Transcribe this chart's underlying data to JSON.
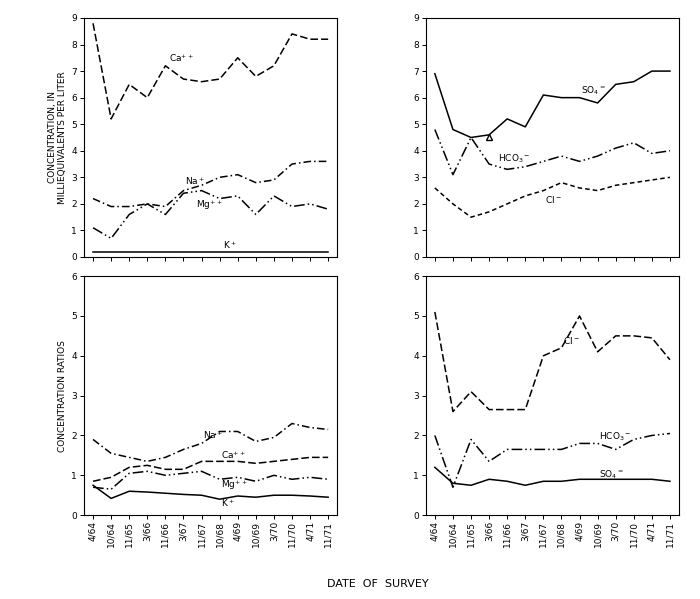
{
  "x_labels": [
    "4/64",
    "10/64",
    "11/65",
    "3/66",
    "11/66",
    "3/67",
    "11/67",
    "10/68",
    "4/69",
    "10/69",
    "3/70",
    "11/70",
    "4/71",
    "11/71"
  ],
  "tl_Ca": [
    8.8,
    5.2,
    6.5,
    6.0,
    7.2,
    6.7,
    6.6,
    6.7,
    7.5,
    6.8,
    7.2,
    8.4,
    8.2,
    8.2
  ],
  "tl_Na": [
    2.2,
    1.9,
    1.9,
    2.0,
    1.9,
    2.5,
    2.7,
    3.0,
    3.1,
    2.8,
    2.9,
    3.5,
    3.6,
    3.6
  ],
  "tl_Mg": [
    1.1,
    0.7,
    1.6,
    2.0,
    1.6,
    2.4,
    2.5,
    2.2,
    2.3,
    1.6,
    2.3,
    1.9,
    2.0,
    1.8
  ],
  "tl_K": [
    0.2,
    0.2,
    0.2,
    0.2,
    0.2,
    0.2,
    0.2,
    0.2,
    0.2,
    0.2,
    0.2,
    0.2,
    0.2,
    0.2
  ],
  "tr_SO4": [
    6.9,
    4.8,
    4.5,
    4.6,
    5.2,
    4.9,
    6.1,
    6.0,
    6.0,
    5.8,
    6.5,
    6.6,
    7.0,
    7.0
  ],
  "tr_HCO3": [
    4.8,
    3.1,
    4.5,
    3.5,
    3.3,
    3.4,
    3.6,
    3.8,
    3.6,
    3.8,
    4.1,
    4.3,
    3.9,
    4.0
  ],
  "tr_Cl": [
    2.6,
    2.0,
    1.5,
    1.7,
    2.0,
    2.3,
    2.5,
    2.8,
    2.6,
    2.5,
    2.7,
    2.8,
    2.9,
    3.0
  ],
  "bl_Na": [
    1.9,
    1.55,
    1.45,
    1.35,
    1.45,
    1.65,
    1.8,
    2.1,
    2.1,
    1.85,
    1.95,
    2.3,
    2.2,
    2.15
  ],
  "bl_Ca": [
    0.85,
    0.95,
    1.2,
    1.25,
    1.15,
    1.15,
    1.35,
    1.35,
    1.35,
    1.3,
    1.35,
    1.4,
    1.45,
    1.45
  ],
  "bl_Mg": [
    0.7,
    0.65,
    1.05,
    1.1,
    1.0,
    1.05,
    1.1,
    0.9,
    0.95,
    0.85,
    1.0,
    0.9,
    0.95,
    0.9
  ],
  "bl_K": [
    0.75,
    0.42,
    0.6,
    0.58,
    0.55,
    0.52,
    0.5,
    0.4,
    0.48,
    0.45,
    0.5,
    0.5,
    0.48,
    0.45
  ],
  "br_Cl": [
    5.1,
    2.6,
    3.1,
    2.65,
    2.65,
    2.65,
    4.0,
    4.2,
    5.0,
    4.1,
    4.5,
    4.5,
    4.45,
    3.9
  ],
  "br_HCO3": [
    2.0,
    0.7,
    1.9,
    1.35,
    1.65,
    1.65,
    1.65,
    1.65,
    1.8,
    1.8,
    1.65,
    1.9,
    2.0,
    2.05
  ],
  "br_SO4": [
    1.2,
    0.8,
    0.75,
    0.9,
    0.85,
    0.75,
    0.85,
    0.85,
    0.9,
    0.9,
    0.9,
    0.9,
    0.9,
    0.85
  ]
}
